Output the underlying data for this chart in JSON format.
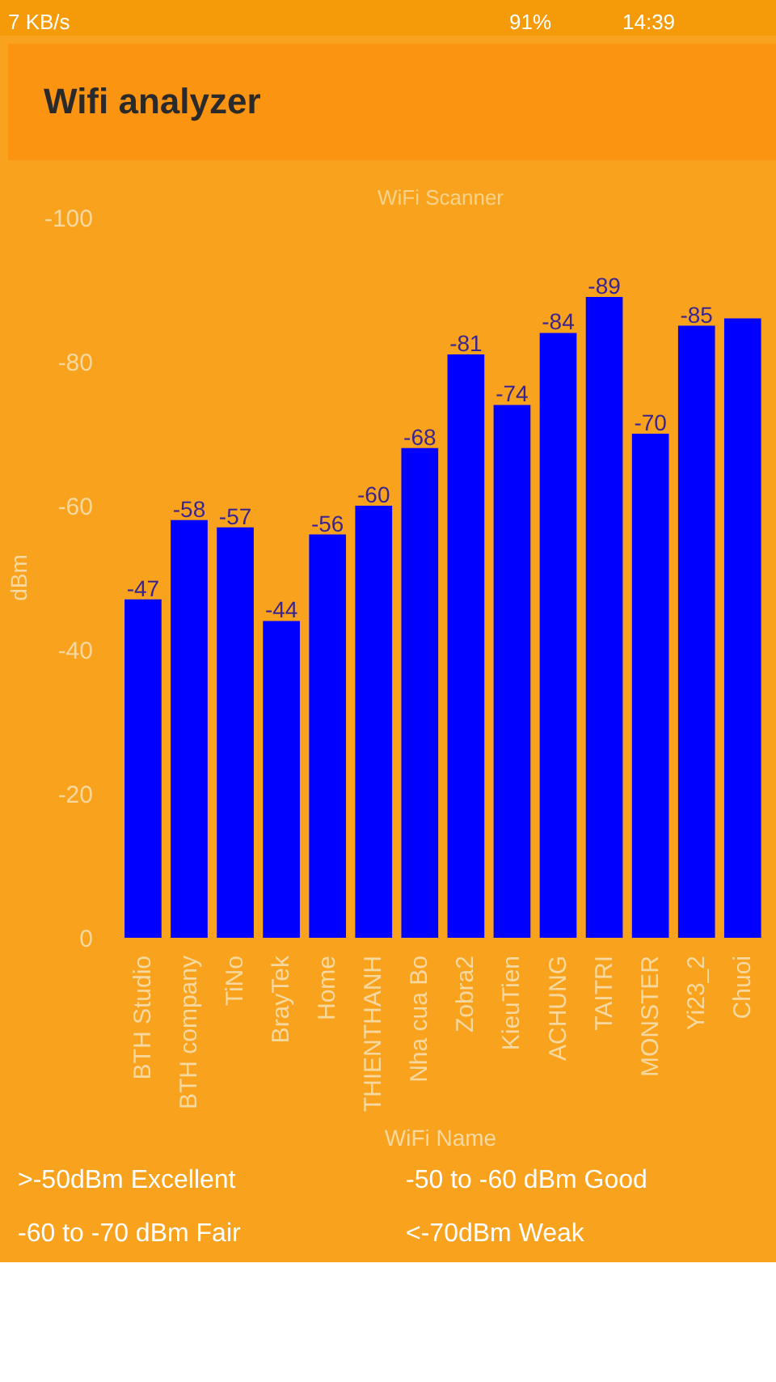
{
  "chart_data": {
    "type": "bar",
    "title": "Wifi analyzer",
    "subtitle": "WiFi Scanner",
    "xlabel": "WiFi Name",
    "ylabel": "dBm",
    "categories": [
      "BTH Studio",
      "BTH company",
      "TiNo",
      "BrayTek",
      "Home",
      "THIENTHANH",
      "Nha cua Bo",
      "Zobra2",
      "KieuTien",
      "ACHUNG",
      "TAITRI",
      "MONSTER",
      "Yi23_2",
      "Chuoi"
    ],
    "values": [
      -47,
      -58,
      -57,
      -44,
      -56,
      -60,
      -68,
      -81,
      -74,
      -84,
      -89,
      -70,
      -85,
      -86
    ],
    "value_labels": [
      "-47",
      "-58",
      "-57",
      "-44",
      "-56",
      "-60",
      "-68",
      "-81",
      "-74",
      "-84",
      "-89",
      "-70",
      "-85",
      null
    ],
    "color": "#0000ff",
    "ylim": [
      0,
      -100
    ],
    "yticks": [
      0,
      -20,
      -40,
      -60,
      -80,
      -100
    ],
    "annotations": [
      "7 KB/s",
      "91%",
      "14:39",
      ">-50dBm   Excellent",
      "-50 to -60 dBm   Good",
      "-60 to -70 dBm   Fair",
      "<-70dBm   Weak"
    ]
  }
}
